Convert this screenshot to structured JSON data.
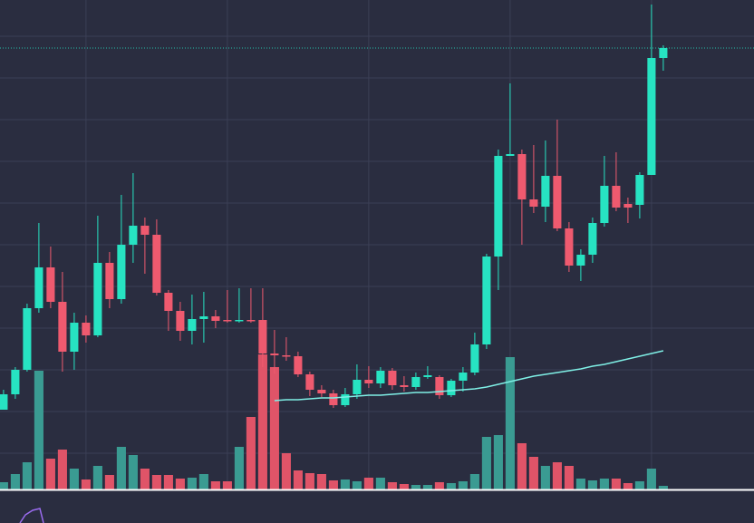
{
  "chart_data": {
    "type": "candlestick",
    "open": [
      88,
      105,
      132,
      200,
      245,
      207,
      152,
      184,
      170,
      250,
      210,
      270,
      291,
      281,
      217,
      197,
      175,
      188,
      191,
      187,
      186,
      187,
      187,
      150,
      148,
      147,
      127,
      110,
      106,
      93,
      105,
      121,
      117,
      131,
      115,
      113,
      124,
      124,
      104,
      120,
      129,
      160,
      257,
      368,
      370,
      320,
      312,
      346,
      288,
      247,
      259,
      294,
      335,
      315,
      314,
      347,
      476
    ],
    "high": [
      110,
      135,
      205,
      294,
      268,
      240,
      195,
      192,
      302,
      262,
      325,
      349,
      300,
      298,
      220,
      207,
      215,
      218,
      198,
      220,
      222,
      222,
      222,
      176,
      168,
      152,
      130,
      115,
      110,
      112,
      138,
      136,
      135,
      134,
      125,
      129,
      136,
      126,
      122,
      135,
      173,
      260,
      375,
      448,
      375,
      380,
      385,
      408,
      295,
      265,
      300,
      368,
      372,
      322,
      350,
      535,
      490
    ],
    "low": [
      88,
      100,
      130,
      195,
      200,
      130,
      132,
      162,
      168,
      200,
      205,
      250,
      238,
      214,
      175,
      164,
      160,
      162,
      178,
      184,
      184,
      184,
      135,
      128,
      142,
      124,
      103,
      102,
      90,
      91,
      100,
      112,
      112,
      110,
      108,
      110,
      122,
      100,
      102,
      108,
      126,
      155,
      220,
      368,
      270,
      305,
      295,
      285,
      240,
      230,
      250,
      290,
      307,
      294,
      299,
      347,
      462
    ],
    "close": [
      105,
      132,
      200,
      245,
      207,
      152,
      184,
      170,
      250,
      210,
      270,
      291,
      281,
      217,
      197,
      175,
      188,
      191,
      186,
      186,
      187,
      186,
      150,
      148,
      147,
      127,
      110,
      106,
      93,
      105,
      121,
      117,
      131,
      115,
      113,
      124,
      126,
      104,
      120,
      129,
      160,
      257,
      368,
      370,
      320,
      312,
      346,
      288,
      247,
      259,
      294,
      335,
      311,
      311,
      347,
      476,
      487
    ],
    "volume": [
      8,
      17,
      30,
      131,
      34,
      44,
      23,
      11,
      26,
      16,
      47,
      38,
      23,
      16,
      16,
      12,
      13,
      17,
      9,
      9,
      47,
      80,
      149,
      135,
      40,
      21,
      18,
      17,
      10,
      11,
      9,
      13,
      13,
      8,
      6,
      5,
      5,
      8,
      7,
      9,
      17,
      58,
      60,
      146,
      51,
      36,
      26,
      30,
      26,
      12,
      10,
      12,
      12,
      7,
      9,
      23,
      4
    ],
    "ma": [
      null,
      null,
      null,
      null,
      null,
      null,
      null,
      null,
      null,
      null,
      null,
      null,
      null,
      null,
      null,
      null,
      null,
      null,
      null,
      null,
      null,
      null,
      null,
      98,
      99,
      99,
      100,
      101,
      101,
      102,
      103,
      104,
      104,
      105,
      106,
      107,
      107,
      108,
      109,
      110,
      111,
      113,
      116,
      119,
      122,
      125,
      127,
      129,
      131,
      133,
      136,
      138,
      141,
      144,
      147,
      150,
      153
    ],
    "last_price": 487,
    "up_color": "#27e3c2",
    "down_color": "#ef5a6f",
    "volume_up_color": "#3a9b92",
    "volume_down_color": "#e05468",
    "ma_color": "#7ff0e6",
    "ylim": [
      0,
      540
    ],
    "yticks": [
      40,
      86,
      132,
      178,
      224,
      270,
      316,
      362,
      408,
      454,
      500
    ],
    "volume_ylim": [
      0,
      540
    ],
    "xlim": [
      -0.3,
      63.7
    ],
    "xticks": [
      7,
      19,
      31,
      43,
      55
    ],
    "grid": true
  }
}
